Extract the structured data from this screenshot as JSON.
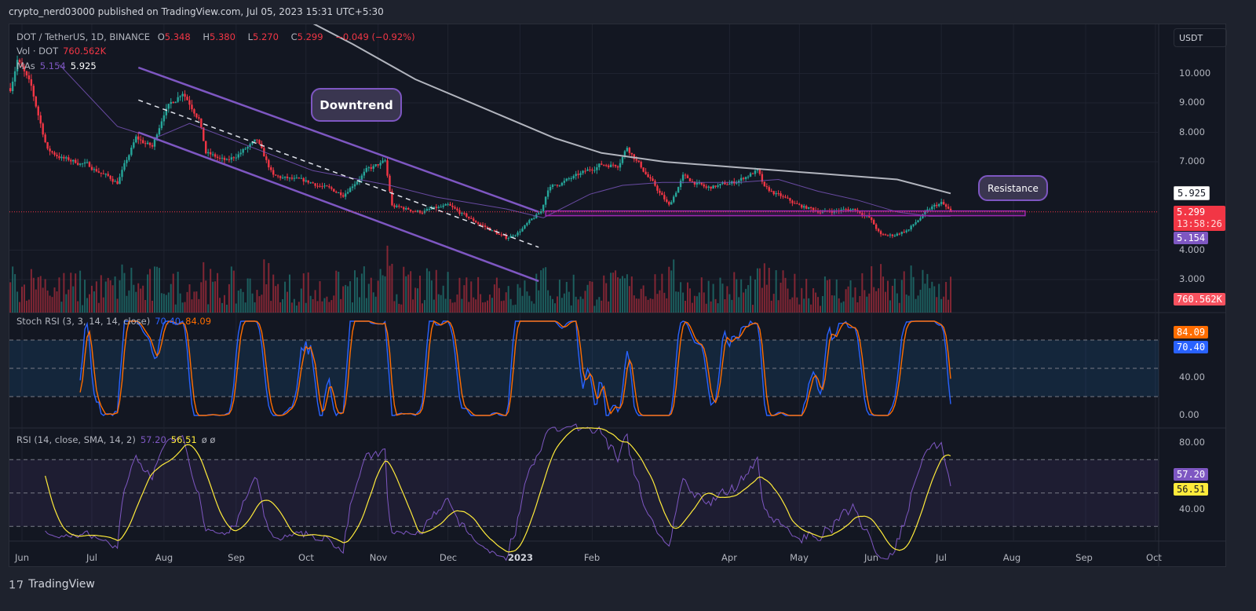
{
  "header": {
    "published": "crypto_nerd03000 published on TradingView.com, Jul 05, 2023 15:31 UTC+5:30"
  },
  "legend": {
    "symbol": "DOT / TetherUS, 1D, BINANCE",
    "o_label": "O",
    "o": "5.348",
    "h_label": "H",
    "h": "5.380",
    "l_label": "L",
    "l": "5.270",
    "c_label": "C",
    "c": "5.299",
    "change": "−0.049 (−0.92%)",
    "vol_label": "Vol · DOT",
    "vol": "760.562K",
    "mas_label": "MAs",
    "ma1": "5.154",
    "ma2": "5.925",
    "stoch_label": "Stoch RSI (3, 3, 14, 14, close)",
    "stoch_k": "70.40",
    "stoch_d": "84.09",
    "rsi_label": "RSI (14, close, SMA, 14, 2)",
    "rsi": "57.20",
    "rsi_ma": "56.51",
    "rsi_extra": "ø ø"
  },
  "price_axis": {
    "currency": "USDT",
    "ticks": [
      "10.000",
      "9.000",
      "8.000",
      "7.000",
      "4.000",
      "3.000"
    ],
    "tags": {
      "ma200": "5.925",
      "last": "5.299",
      "countdown": "13:58:26",
      "ma50": "5.154",
      "volume": "760.562K"
    }
  },
  "stoch_axis": {
    "ticks": [
      "40.00",
      "0.00"
    ],
    "tags": {
      "d": "84.09",
      "k": "70.40"
    }
  },
  "rsi_axis": {
    "ticks": [
      "80.00",
      "40.00"
    ],
    "tags": {
      "rsi": "57.20",
      "rsi_ma": "56.51"
    }
  },
  "time_axis": [
    {
      "label": "Jun",
      "date": "2022-06-01"
    },
    {
      "label": "Jul",
      "date": "2022-07-01"
    },
    {
      "label": "Aug",
      "date": "2022-08-01"
    },
    {
      "label": "Sep",
      "date": "2022-09-01"
    },
    {
      "label": "Oct",
      "date": "2022-10-01"
    },
    {
      "label": "Nov",
      "date": "2022-11-01"
    },
    {
      "label": "Dec",
      "date": "2022-12-01"
    },
    {
      "label": "2023",
      "date": "2023-01-01",
      "bold": true
    },
    {
      "label": "Feb",
      "date": "2023-02-01"
    },
    {
      "label": "Apr",
      "date": "2023-04-01"
    },
    {
      "label": "May",
      "date": "2023-05-01"
    },
    {
      "label": "Jun",
      "date": "2023-06-01"
    },
    {
      "label": "Jul",
      "date": "2023-07-01"
    },
    {
      "label": "Aug",
      "date": "2023-08-01"
    },
    {
      "label": "Sep",
      "date": "2023-09-01"
    },
    {
      "label": "Oct",
      "date": "2023-10-01"
    }
  ],
  "annotations": {
    "downtrend": "Downtrend",
    "resistance": "Resistance"
  },
  "footer": {
    "brand": "TradingView"
  },
  "colors": {
    "up": "#26a69a",
    "down": "#f23645",
    "ma50": "#7e57c2",
    "ma200": "#b2b5be",
    "stoch_k": "#2962ff",
    "stoch_d": "#ff6d00",
    "rsi": "#7e57c2",
    "rsi_ma": "#ffeb3b",
    "channel": "#7e57c2",
    "resistance": "#9c27b0"
  },
  "chart_data": {
    "type": "candlestick",
    "symbol": "DOT/USDT",
    "interval": "1D",
    "ylim": [
      2.5,
      11.5
    ],
    "close_path": [
      [
        "2022-05-27",
        9.5
      ],
      [
        "2022-05-30",
        10.5
      ],
      [
        "2022-06-05",
        9.5
      ],
      [
        "2022-06-12",
        7.4
      ],
      [
        "2022-06-19",
        7.1
      ],
      [
        "2022-06-29",
        6.9
      ],
      [
        "2022-07-12",
        6.3
      ],
      [
        "2022-07-20",
        7.8
      ],
      [
        "2022-07-27",
        7.5
      ],
      [
        "2022-08-01",
        8.7
      ],
      [
        "2022-08-09",
        9.4
      ],
      [
        "2022-08-16",
        8.5
      ],
      [
        "2022-08-19",
        7.3
      ],
      [
        "2022-08-28",
        7.0
      ],
      [
        "2022-09-10",
        7.7
      ],
      [
        "2022-09-17",
        6.5
      ],
      [
        "2022-10-03",
        6.3
      ],
      [
        "2022-10-17",
        5.9
      ],
      [
        "2022-10-27",
        6.7
      ],
      [
        "2022-11-04",
        7.0
      ],
      [
        "2022-11-07",
        5.5
      ],
      [
        "2022-11-19",
        5.3
      ],
      [
        "2022-12-01",
        5.5
      ],
      [
        "2022-12-12",
        5.0
      ],
      [
        "2022-12-26",
        4.4
      ],
      [
        "2022-12-31",
        4.6
      ],
      [
        "2023-01-10",
        5.3
      ],
      [
        "2023-01-13",
        6.1
      ],
      [
        "2023-01-25",
        6.5
      ],
      [
        "2023-02-04",
        6.9
      ],
      [
        "2023-02-12",
        6.9
      ],
      [
        "2023-02-16",
        7.5
      ],
      [
        "2023-02-24",
        6.6
      ],
      [
        "2023-03-06",
        5.5
      ],
      [
        "2023-03-12",
        6.5
      ],
      [
        "2023-03-22",
        6.1
      ],
      [
        "2023-04-03",
        6.3
      ],
      [
        "2023-04-13",
        6.7
      ],
      [
        "2023-04-16",
        6.1
      ],
      [
        "2023-05-01",
        5.5
      ],
      [
        "2023-05-11",
        5.3
      ],
      [
        "2023-05-25",
        5.4
      ],
      [
        "2023-05-31",
        5.1
      ],
      [
        "2023-06-05",
        4.5
      ],
      [
        "2023-06-10",
        4.5
      ],
      [
        "2023-06-17",
        4.7
      ],
      [
        "2023-06-22",
        5.1
      ],
      [
        "2023-06-27",
        5.45
      ],
      [
        "2023-07-01",
        5.6
      ],
      [
        "2023-07-05",
        5.299
      ]
    ],
    "ma50": [
      [
        "2022-06-17",
        10.3
      ],
      [
        "2022-07-12",
        8.2
      ],
      [
        "2022-07-28",
        7.8
      ],
      [
        "2022-08-12",
        8.3
      ],
      [
        "2022-09-01",
        7.7
      ],
      [
        "2022-10-04",
        6.7
      ],
      [
        "2022-11-06",
        6.2
      ],
      [
        "2022-11-26",
        5.8
      ],
      [
        "2022-12-26",
        5.4
      ],
      [
        "2023-01-11",
        5.1
      ],
      [
        "2023-01-31",
        5.9
      ],
      [
        "2023-02-14",
        6.2
      ],
      [
        "2023-03-03",
        6.3
      ],
      [
        "2023-04-05",
        6.3
      ],
      [
        "2023-04-22",
        6.4
      ],
      [
        "2023-05-09",
        6.0
      ],
      [
        "2023-05-26",
        5.7
      ],
      [
        "2023-06-12",
        5.3
      ],
      [
        "2023-06-26",
        5.15
      ],
      [
        "2023-07-05",
        5.154
      ]
    ],
    "ma200": [
      [
        "2022-10-04",
        11.7
      ],
      [
        "2022-10-21",
        11.0
      ],
      [
        "2022-11-17",
        9.8
      ],
      [
        "2022-12-14",
        8.9
      ],
      [
        "2023-01-16",
        7.8
      ],
      [
        "2023-02-05",
        7.3
      ],
      [
        "2023-03-04",
        7.0
      ],
      [
        "2023-04-06",
        6.8
      ],
      [
        "2023-05-10",
        6.6
      ],
      [
        "2023-06-12",
        6.4
      ],
      [
        "2023-07-05",
        5.925
      ]
    ],
    "drawings": {
      "channel_upper": [
        [
          "2022-07-21",
          10.2
        ],
        [
          "2023-01-09",
          5.3
        ]
      ],
      "channel_lower": [
        [
          "2022-07-21",
          8.0
        ],
        [
          "2023-01-09",
          2.95
        ]
      ],
      "channel_mid": [
        [
          "2022-07-21",
          9.1
        ],
        [
          "2023-01-09",
          4.1
        ]
      ],
      "resistance_zone": {
        "from": "2023-01-12",
        "to": "2023-08-06",
        "top": 5.33,
        "bottom": 5.17
      }
    },
    "stoch_rsi": {
      "k_last": 70.4,
      "d_last": 84.09,
      "bands": [
        80,
        50,
        20
      ],
      "ylim": [
        -5,
        110
      ]
    },
    "rsi": {
      "last": 57.2,
      "ma_last": 56.51,
      "bands": [
        70,
        50,
        30
      ],
      "ylim": [
        20,
        92
      ]
    }
  }
}
